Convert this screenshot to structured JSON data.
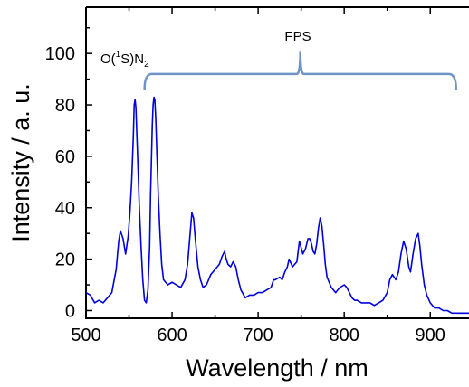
{
  "chart_data": {
    "type": "line",
    "title": "",
    "xlabel": "Wavelength / nm",
    "ylabel": "Intensity / a. u.",
    "xlim": [
      500,
      945
    ],
    "ylim": [
      -3,
      118
    ],
    "x_ticks": [
      500,
      600,
      700,
      800,
      900
    ],
    "y_ticks": [
      0,
      20,
      40,
      60,
      80,
      100
    ],
    "grid": false,
    "legend": "none",
    "line_color": "#0000dd",
    "bracket_color": "#6f93c6",
    "annotations": {
      "o1s_prefix": "O(",
      "o1s_sup": "1",
      "o1s_mid": "S)N",
      "o1s_sub": "2",
      "fps": "FPS"
    },
    "fps_range": [
      568,
      930
    ],
    "series": [
      {
        "x": [
          500,
          505,
          510,
          515,
          520,
          525,
          530,
          535,
          538,
          540,
          543,
          546,
          549,
          551,
          553,
          555,
          556,
          557,
          558,
          560,
          562,
          564,
          566,
          568,
          570,
          572,
          574,
          575,
          577,
          578,
          579,
          580,
          581,
          582,
          584,
          586,
          588,
          590,
          595,
          600,
          605,
          610,
          615,
          618,
          621,
          623,
          625,
          627,
          630,
          633,
          636,
          640,
          645,
          650,
          655,
          658,
          661,
          663,
          665,
          668,
          671,
          674,
          677,
          680,
          685,
          690,
          695,
          700,
          705,
          710,
          715,
          718,
          720,
          725,
          728,
          731,
          734,
          736,
          740,
          745,
          748,
          752,
          755,
          758,
          760,
          762,
          764,
          766,
          768,
          770,
          772,
          774,
          776,
          778,
          780,
          785,
          790,
          795,
          800,
          803,
          806,
          809,
          812,
          815,
          820,
          825,
          830,
          835,
          840,
          845,
          850,
          853,
          856,
          860,
          863,
          866,
          869,
          872,
          875,
          877,
          880,
          883,
          886,
          888,
          890,
          893,
          896,
          900,
          905,
          910,
          915,
          920,
          925,
          930,
          935,
          940,
          945
        ],
        "values": [
          7,
          6,
          3,
          4,
          3,
          5,
          7,
          16,
          27,
          31,
          28,
          22,
          29,
          38,
          50,
          68,
          80,
          82,
          79,
          60,
          40,
          25,
          12,
          4,
          3,
          8,
          25,
          45,
          72,
          80,
          83,
          82,
          75,
          65,
          45,
          30,
          18,
          12,
          10,
          11,
          10,
          9,
          12,
          18,
          30,
          38,
          36,
          28,
          17,
          12,
          9,
          10,
          14,
          16,
          18,
          21,
          23,
          20,
          18,
          17,
          19,
          17,
          12,
          8,
          5,
          6,
          6,
          7,
          7,
          8,
          9,
          12,
          12,
          13,
          12,
          15,
          17,
          20,
          17,
          19,
          27,
          22,
          24,
          28,
          28,
          26,
          23,
          22,
          26,
          32,
          36,
          33,
          26,
          18,
          13,
          9,
          7,
          9,
          10,
          9,
          7,
          5,
          4,
          4,
          3,
          3,
          3,
          2,
          3,
          4,
          7,
          12,
          14,
          12,
          15,
          22,
          27,
          24,
          17,
          15,
          22,
          28,
          30,
          25,
          18,
          10,
          6,
          3,
          1,
          1,
          0,
          0,
          -1,
          -1,
          -1,
          -1,
          -1
        ]
      }
    ]
  }
}
